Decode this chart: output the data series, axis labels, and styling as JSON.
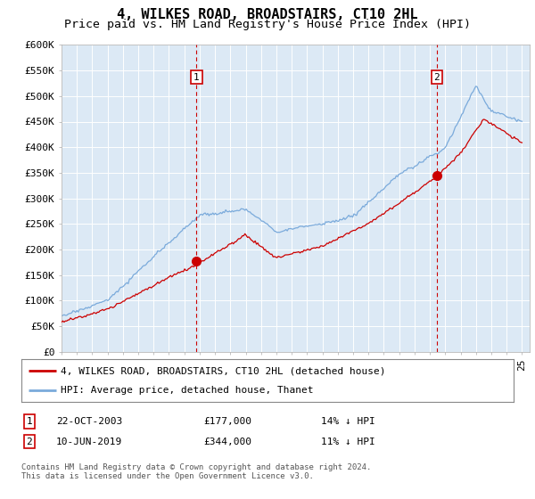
{
  "title": "4, WILKES ROAD, BROADSTAIRS, CT10 2HL",
  "subtitle": "Price paid vs. HM Land Registry's House Price Index (HPI)",
  "ylim": [
    0,
    600000
  ],
  "yticks": [
    0,
    50000,
    100000,
    150000,
    200000,
    250000,
    300000,
    350000,
    400000,
    450000,
    500000,
    550000,
    600000
  ],
  "ytick_labels": [
    "£0",
    "£50K",
    "£100K",
    "£150K",
    "£200K",
    "£250K",
    "£300K",
    "£350K",
    "£400K",
    "£450K",
    "£500K",
    "£550K",
    "£600K"
  ],
  "xlim_start": 1995.0,
  "xlim_end": 2025.5,
  "plot_bg": "#dce9f5",
  "fig_bg": "#ffffff",
  "red_color": "#cc0000",
  "blue_color": "#7aaadb",
  "legend_label_red": "4, WILKES ROAD, BROADSTAIRS, CT10 2HL (detached house)",
  "legend_label_blue": "HPI: Average price, detached house, Thanet",
  "purchase1_x": 2003.8,
  "purchase1_y": 177000,
  "purchase2_x": 2019.45,
  "purchase2_y": 344000,
  "purchase1_date": "22-OCT-2003",
  "purchase1_price": "£177,000",
  "purchase1_hpi": "14% ↓ HPI",
  "purchase2_date": "10-JUN-2019",
  "purchase2_price": "£344,000",
  "purchase2_hpi": "11% ↓ HPI",
  "footer": "Contains HM Land Registry data © Crown copyright and database right 2024.\nThis data is licensed under the Open Government Licence v3.0.",
  "title_fontsize": 11,
  "subtitle_fontsize": 9.5,
  "axis_fontsize": 8,
  "legend_fontsize": 8,
  "table_fontsize": 8,
  "footer_fontsize": 6.5
}
